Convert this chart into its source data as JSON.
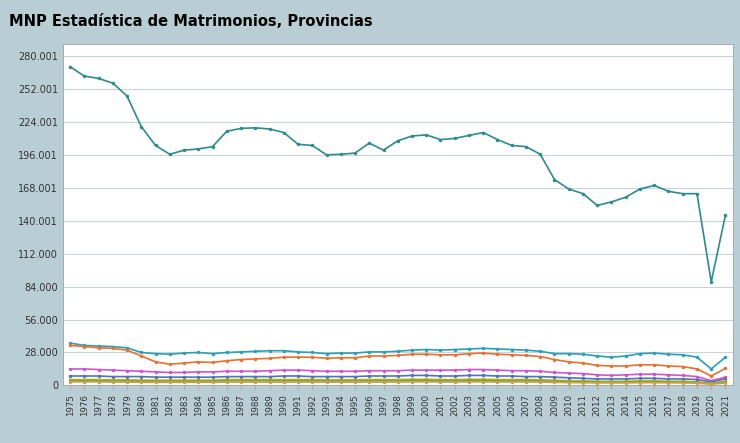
{
  "title": "MNP Estadística de Matrimonios, Provincias",
  "title_bg": "#b8cdd4",
  "years": [
    1975,
    1976,
    1977,
    1978,
    1979,
    1980,
    1981,
    1982,
    1983,
    1984,
    1985,
    1986,
    1987,
    1988,
    1989,
    1990,
    1991,
    1992,
    1993,
    1994,
    1995,
    1996,
    1997,
    1998,
    1999,
    2000,
    2001,
    2002,
    2003,
    2004,
    2005,
    2006,
    2007,
    2008,
    2009,
    2010,
    2011,
    2012,
    2013,
    2014,
    2015,
    2016,
    2017,
    2018,
    2019,
    2020,
    2021
  ],
  "total": [
    271000,
    263000,
    261000,
    257000,
    246000,
    220000,
    204000,
    196500,
    200000,
    201000,
    203000,
    216000,
    218500,
    219000,
    218000,
    215000,
    205000,
    204000,
    196000,
    196500,
    197500,
    206000,
    200000,
    208000,
    212000,
    213000,
    209000,
    210000,
    212500,
    215000,
    209000,
    204000,
    203000,
    196500,
    175000,
    167000,
    163000,
    153000,
    156000,
    160000,
    167000,
    170000,
    165000,
    163000,
    163000,
    88000,
    145000
  ],
  "series": [
    {
      "color": "#29a0b5",
      "values": [
        36000,
        34000,
        33500,
        33000,
        32000,
        28000,
        27000,
        26500,
        27500,
        28000,
        27000,
        28000,
        28500,
        29000,
        29500,
        29500,
        28500,
        28000,
        27000,
        27500,
        27500,
        28500,
        28500,
        29000,
        30000,
        30500,
        30000,
        30500,
        31000,
        31500,
        31000,
        30500,
        30000,
        29000,
        27000,
        27000,
        26500,
        25000,
        24000,
        25000,
        27000,
        27500,
        26500,
        26000,
        24000,
        14000,
        24000
      ]
    },
    {
      "color": "#e87030",
      "values": [
        34000,
        33000,
        32000,
        31500,
        30000,
        25000,
        20000,
        18000,
        19000,
        20000,
        19500,
        21000,
        22000,
        22500,
        23000,
        24000,
        24000,
        24000,
        23000,
        23500,
        23500,
        25000,
        25000,
        25500,
        26500,
        26500,
        26000,
        26000,
        27000,
        27500,
        26500,
        26000,
        25500,
        24500,
        22000,
        20000,
        19000,
        17000,
        16500,
        16500,
        17500,
        17500,
        16500,
        16000,
        14000,
        8000,
        14500
      ]
    },
    {
      "color": "#cc55cc",
      "values": [
        14000,
        14000,
        13500,
        13000,
        12500,
        12000,
        11500,
        11000,
        11000,
        11500,
        11500,
        12000,
        12000,
        12000,
        12500,
        13000,
        13000,
        12500,
        12000,
        12000,
        12000,
        12500,
        12500,
        12500,
        13000,
        13000,
        13000,
        13000,
        13500,
        13500,
        13000,
        12500,
        12500,
        12000,
        11000,
        10500,
        10000,
        9000,
        8500,
        9000,
        9500,
        9500,
        9000,
        8500,
        7500,
        4000,
        7000
      ]
    },
    {
      "color": "#5070c0",
      "values": [
        8000,
        8000,
        8000,
        7500,
        7500,
        7500,
        7000,
        7000,
        7000,
        7000,
        7000,
        7500,
        7500,
        7500,
        7500,
        8000,
        8000,
        7500,
        7500,
        7500,
        7500,
        8000,
        8000,
        8000,
        8500,
        8500,
        8000,
        8000,
        8500,
        8500,
        8000,
        8000,
        7500,
        7500,
        7000,
        6500,
        6000,
        5500,
        5500,
        5500,
        6000,
        6000,
        5500,
        5500,
        5000,
        3000,
        5500
      ]
    },
    {
      "color": "#b0b820",
      "values": [
        5000,
        5000,
        5000,
        4800,
        4800,
        4500,
        4500,
        4500,
        4500,
        4500,
        4500,
        5000,
        5000,
        5000,
        5000,
        5000,
        5000,
        5000,
        4800,
        4800,
        4800,
        5000,
        5000,
        5000,
        5200,
        5200,
        5000,
        5000,
        5200,
        5200,
        5000,
        5000,
        5000,
        4800,
        4500,
        4000,
        4000,
        3500,
        3500,
        3500,
        4000,
        4000,
        3500,
        3500,
        3000,
        1800,
        3500
      ]
    },
    {
      "color": "#80a030",
      "values": [
        4000,
        4000,
        4000,
        3800,
        3800,
        3500,
        3500,
        3500,
        3500,
        3500,
        3500,
        4000,
        4000,
        4000,
        4000,
        4000,
        4000,
        4000,
        3800,
        3800,
        3800,
        4000,
        4000,
        4000,
        4200,
        4200,
        4000,
        4000,
        4200,
        4200,
        4000,
        4000,
        4000,
        3800,
        3500,
        3200,
        3000,
        2800,
        2800,
        2800,
        3000,
        3000,
        2800,
        2800,
        2500,
        1500,
        2800
      ]
    },
    {
      "color": "#c8a050",
      "values": [
        3000,
        3000,
        3000,
        2800,
        2800,
        2600,
        2600,
        2600,
        2600,
        2600,
        2600,
        2800,
        2800,
        2800,
        2800,
        2800,
        2800,
        2800,
        2700,
        2700,
        2700,
        2800,
        2800,
        2800,
        3000,
        3000,
        2900,
        2900,
        3000,
        3000,
        2900,
        2900,
        2900,
        2800,
        2600,
        2400,
        2300,
        2100,
        2100,
        2100,
        2300,
        2300,
        2200,
        2100,
        1900,
        1100,
        2000
      ]
    }
  ],
  "total_color": "#2e8b8b",
  "ylim": [
    0,
    290000
  ],
  "yticks": [
    0,
    28000,
    56000,
    84000,
    112000,
    140001,
    168001,
    196001,
    224001,
    252001,
    280001
  ],
  "ytick_labels": [
    "0",
    "28.000",
    "56.000",
    "84.000",
    "112.000",
    "140.001",
    "168.001",
    "196.001",
    "224.001",
    "252.001",
    "280.001"
  ],
  "chart_bg": "#ffffff",
  "grid_color": "#c8d4d8",
  "markersize": 2.5,
  "linewidth": 1.2
}
